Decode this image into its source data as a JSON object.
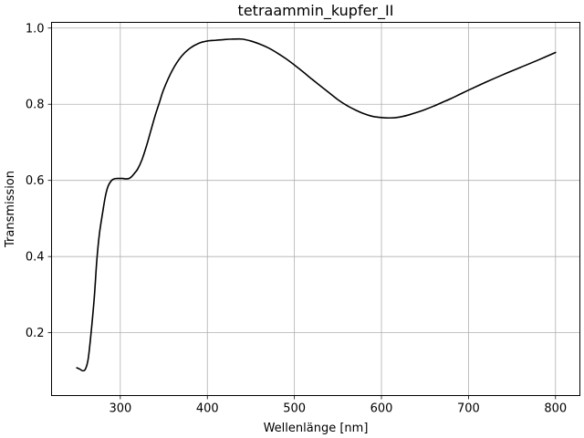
{
  "chart_data": {
    "type": "line",
    "title": "tetraammin_kupfer_II",
    "xlabel": "Wellenlänge [nm]",
    "ylabel": "Transmission",
    "xlim": [
      221,
      828
    ],
    "ylim": [
      0.035,
      1.015
    ],
    "x_ticks": [
      300,
      400,
      500,
      600,
      700,
      800
    ],
    "y_ticks": [
      0.2,
      0.4,
      0.6,
      0.8,
      1.0
    ],
    "x_tick_labels": [
      "300",
      "400",
      "500",
      "600",
      "700",
      "800"
    ],
    "y_tick_labels": [
      "0.2",
      "0.4",
      "0.6",
      "0.8",
      "1.0"
    ],
    "grid": true,
    "line_color": "#000000",
    "series": [
      {
        "x": [
          250,
          253,
          257,
          260,
          263,
          266,
          270,
          273,
          276,
          280,
          283,
          286,
          290,
          293,
          296,
          300,
          303,
          306,
          310,
          313,
          316,
          320,
          325,
          330,
          335,
          340,
          345,
          350,
          360,
          370,
          380,
          390,
          400,
          410,
          420,
          430,
          440,
          450,
          460,
          470,
          480,
          490,
          500,
          510,
          520,
          530,
          540,
          550,
          560,
          570,
          580,
          590,
          600,
          610,
          620,
          630,
          640,
          650,
          660,
          670,
          680,
          690,
          700,
          720,
          740,
          760,
          780,
          800
        ],
        "y": [
          0.108,
          0.105,
          0.1,
          0.105,
          0.13,
          0.19,
          0.29,
          0.39,
          0.46,
          0.52,
          0.56,
          0.585,
          0.6,
          0.604,
          0.605,
          0.605,
          0.605,
          0.604,
          0.605,
          0.61,
          0.618,
          0.63,
          0.655,
          0.69,
          0.73,
          0.77,
          0.805,
          0.84,
          0.89,
          0.925,
          0.947,
          0.96,
          0.966,
          0.968,
          0.97,
          0.971,
          0.971,
          0.966,
          0.958,
          0.948,
          0.935,
          0.92,
          0.903,
          0.885,
          0.866,
          0.848,
          0.83,
          0.812,
          0.797,
          0.785,
          0.775,
          0.768,
          0.765,
          0.764,
          0.766,
          0.771,
          0.778,
          0.786,
          0.795,
          0.805,
          0.815,
          0.826,
          0.837,
          0.858,
          0.878,
          0.897,
          0.916,
          0.936
        ]
      }
    ]
  }
}
